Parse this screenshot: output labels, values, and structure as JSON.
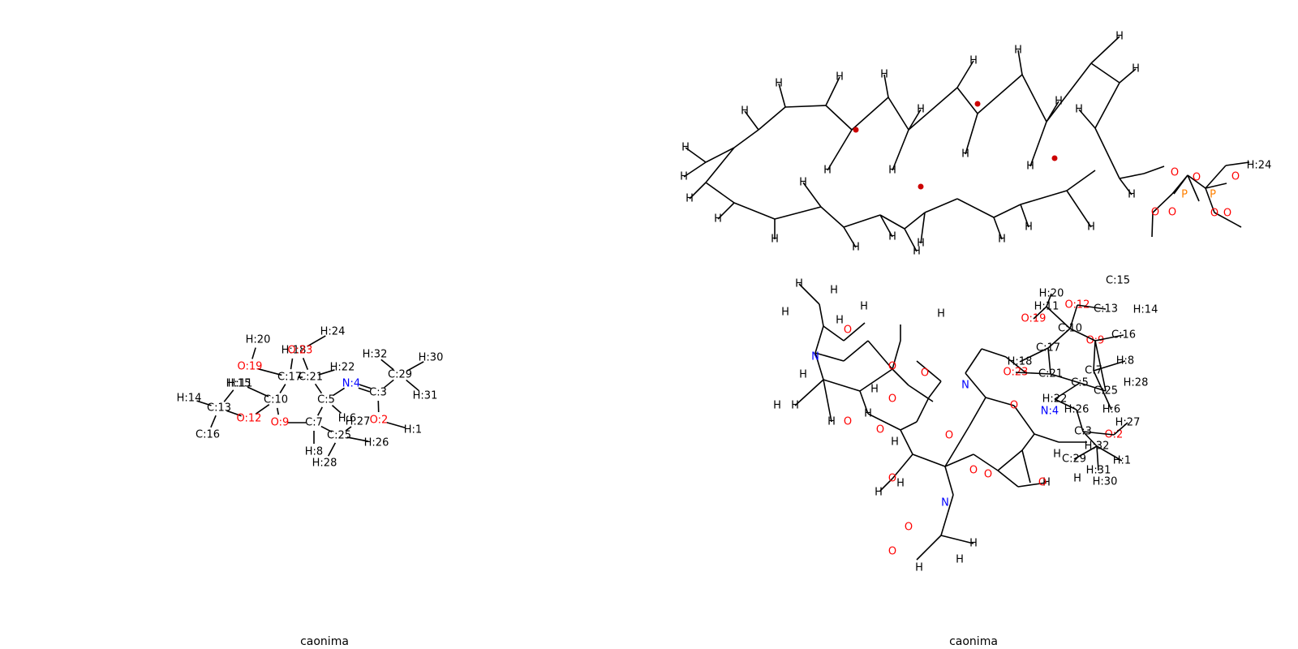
{
  "panels": [
    {
      "caption": "caonima",
      "atoms": {
        "h20": {
          "label": "H:20",
          "color": "#000000"
        },
        "o19": {
          "label": "O:19",
          "color": "#ff0000"
        },
        "h18": {
          "label": "H:18",
          "color": "#000000"
        },
        "o23": {
          "label": "O:23",
          "color": "#ff0000"
        },
        "h24": {
          "label": "H:24",
          "color": "#000000"
        },
        "h15": {
          "label": "H:15",
          "color": "#000000"
        },
        "h11": {
          "label": "H:11",
          "color": "#000000"
        },
        "c17": {
          "label": "C:17",
          "color": "#000000"
        },
        "c21": {
          "label": "C:21",
          "color": "#000000"
        },
        "h22": {
          "label": "H:22",
          "color": "#000000"
        },
        "n4": {
          "label": "N:4",
          "color": "#0000ff"
        },
        "h32": {
          "label": "H:32",
          "color": "#000000"
        },
        "h30": {
          "label": "H:30",
          "color": "#000000"
        },
        "c29": {
          "label": "C:29",
          "color": "#000000"
        },
        "h14": {
          "label": "H:14",
          "color": "#000000"
        },
        "c13": {
          "label": "C:13",
          "color": "#000000"
        },
        "c10": {
          "label": "C:10",
          "color": "#000000"
        },
        "c5": {
          "label": "C:5",
          "color": "#000000"
        },
        "c3": {
          "label": "C:3",
          "color": "#000000"
        },
        "h31": {
          "label": "H:31",
          "color": "#000000"
        },
        "o12": {
          "label": "O:12",
          "color": "#ff0000"
        },
        "h6": {
          "label": "H:6",
          "color": "#000000"
        },
        "o9": {
          "label": "O:9",
          "color": "#ff0000"
        },
        "c7": {
          "label": "C:7",
          "color": "#000000"
        },
        "h27": {
          "label": "H:27",
          "color": "#000000"
        },
        "o2": {
          "label": "O:2",
          "color": "#ff0000"
        },
        "h1": {
          "label": "H:1",
          "color": "#000000"
        },
        "c16": {
          "label": "C:16",
          "color": "#000000"
        },
        "c25": {
          "label": "C:25",
          "color": "#000000"
        },
        "h26": {
          "label": "H:26",
          "color": "#000000"
        },
        "h8": {
          "label": "H:8",
          "color": "#000000"
        },
        "h28": {
          "label": "H:28",
          "color": "#000000"
        }
      },
      "bonds": [
        [
          "h20",
          "o19",
          1
        ],
        [
          "o19",
          "c17",
          1
        ],
        [
          "c17",
          "h18",
          1
        ],
        [
          "c17",
          "c10",
          1
        ],
        [
          "c17",
          "c21",
          1
        ],
        [
          "c21",
          "o23",
          1
        ],
        [
          "o23",
          "h24",
          1
        ],
        [
          "c21",
          "h22",
          1
        ],
        [
          "c21",
          "c5",
          1
        ],
        [
          "c5",
          "n4",
          1
        ],
        [
          "n4",
          "c3",
          2
        ],
        [
          "c3",
          "c29",
          1
        ],
        [
          "c29",
          "h32",
          1
        ],
        [
          "c29",
          "h30",
          1
        ],
        [
          "c29",
          "h31",
          1
        ],
        [
          "c3",
          "o2",
          1
        ],
        [
          "o2",
          "h1",
          1
        ],
        [
          "c5",
          "h6",
          1
        ],
        [
          "c5",
          "c7",
          1
        ],
        [
          "c7",
          "o9",
          1
        ],
        [
          "o9",
          "c10",
          1
        ],
        [
          "c10",
          "h11",
          1
        ],
        [
          "c10",
          "o12",
          1
        ],
        [
          "o12",
          "c13",
          1
        ],
        [
          "c13",
          "h14",
          1
        ],
        [
          "c13",
          "h15",
          1
        ],
        [
          "c13",
          "c16",
          1
        ],
        [
          "c7",
          "h8",
          1
        ],
        [
          "c7",
          "c25",
          1
        ],
        [
          "c25",
          "h27",
          1
        ],
        [
          "c25",
          "h26",
          1
        ],
        [
          "c25",
          "h28",
          1
        ]
      ]
    },
    {
      "caption": "caonima",
      "colors": {
        "carbon": "#000000",
        "oxygen": "#ff0000",
        "nitrogen": "#0000ff",
        "phosphorus": "#ff8000",
        "stereo_dot": "#cc0000"
      },
      "element_symbols": {
        "hydrogen": "H",
        "oxygen": "O",
        "nitrogen": "N",
        "phosphorus": "P"
      },
      "top_molecule": {
        "labeled_atoms": [
          {
            "label": "H:24",
            "color": "#000000"
          }
        ]
      },
      "bottom_molecule": {
        "labeled_atoms": [
          {
            "label": "C:15",
            "color": "#000000"
          },
          {
            "label": "H:20",
            "color": "#000000"
          },
          {
            "label": "O:12",
            "color": "#ff0000"
          },
          {
            "label": "C:13",
            "color": "#000000"
          },
          {
            "label": "H:14",
            "color": "#000000"
          },
          {
            "label": "O:19",
            "color": "#ff0000"
          },
          {
            "label": "H:11",
            "color": "#000000"
          },
          {
            "label": "C:10",
            "color": "#000000"
          },
          {
            "label": "O:9",
            "color": "#ff0000"
          },
          {
            "label": "C:16",
            "color": "#000000"
          },
          {
            "label": "H:18",
            "color": "#000000"
          },
          {
            "label": "C:17",
            "color": "#000000"
          },
          {
            "label": "C:7",
            "color": "#000000"
          },
          {
            "label": "H:8",
            "color": "#000000"
          },
          {
            "label": "O:23",
            "color": "#ff0000"
          },
          {
            "label": "C:21",
            "color": "#000000"
          },
          {
            "label": "H:28",
            "color": "#000000"
          },
          {
            "label": "C:5",
            "color": "#000000"
          },
          {
            "label": "C:25",
            "color": "#000000"
          },
          {
            "label": "H:22",
            "color": "#000000"
          },
          {
            "label": "N:4",
            "color": "#0000ff"
          },
          {
            "label": "H:26",
            "color": "#000000"
          },
          {
            "label": "H:6",
            "color": "#000000"
          },
          {
            "label": "H:27",
            "color": "#000000"
          },
          {
            "label": "C:3",
            "color": "#000000"
          },
          {
            "label": "O:2",
            "color": "#ff0000"
          },
          {
            "label": "H:32",
            "color": "#000000"
          },
          {
            "label": "C:29",
            "color": "#000000"
          },
          {
            "label": "H:1",
            "color": "#000000"
          },
          {
            "label": "H:31",
            "color": "#000000"
          },
          {
            "label": "H:30",
            "color": "#000000"
          }
        ]
      }
    }
  ]
}
